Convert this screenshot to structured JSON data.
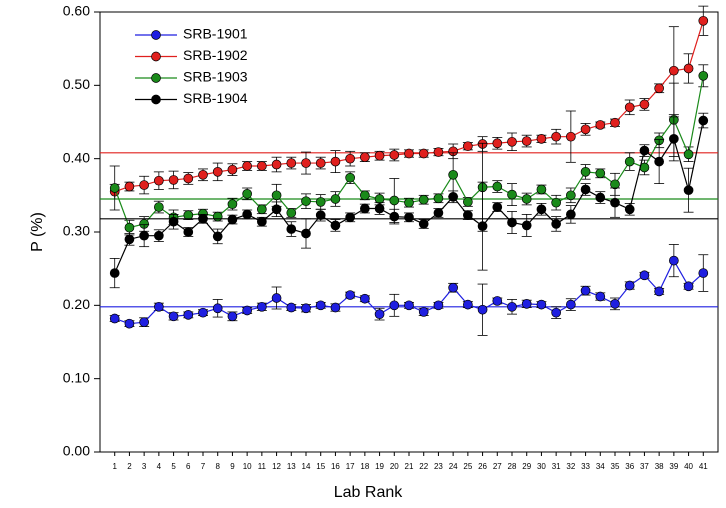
{
  "chart_data": {
    "type": "line",
    "x_label": "Lab Rank",
    "y_label": "P (%)",
    "categories": [
      "1",
      "2",
      "3",
      "4",
      "5",
      "6",
      "7",
      "8",
      "9",
      "10",
      "11",
      "12",
      "13",
      "14",
      "15",
      "16",
      "17",
      "18",
      "19",
      "20",
      "21",
      "22",
      "23",
      "24",
      "25",
      "26",
      "27",
      "28",
      "29",
      "30",
      "31",
      "32",
      "33",
      "34",
      "35",
      "36",
      "37",
      "38",
      "39",
      "40",
      "41"
    ],
    "ylim": [
      0,
      0.6
    ],
    "yticks": [
      {
        "value": 0,
        "label": "0.00"
      },
      {
        "value": 0.1,
        "label": "0.10"
      },
      {
        "value": 0.2,
        "label": "0.20"
      },
      {
        "value": 0.3,
        "label": "0.30"
      },
      {
        "value": 0.4,
        "label": "0.40"
      },
      {
        "value": 0.5,
        "label": "0.50"
      },
      {
        "value": 0.6,
        "label": "0.60"
      }
    ],
    "legend": "upper left",
    "series": [
      {
        "name": "SRB-1901",
        "color": "#1f1fe0",
        "reference": 0.198,
        "values": [
          0.182,
          0.175,
          0.177,
          0.198,
          0.185,
          0.187,
          0.19,
          0.196,
          0.185,
          0.193,
          0.198,
          0.21,
          0.197,
          0.196,
          0.2,
          0.197,
          0.214,
          0.209,
          0.188,
          0.2,
          0.2,
          0.191,
          0.2,
          0.224,
          0.201,
          0.194,
          0.206,
          0.198,
          0.202,
          0.201,
          0.19,
          0.201,
          0.22,
          0.212,
          0.202,
          0.227,
          0.241,
          0.219,
          0.261,
          0.226,
          0.244
        ],
        "errors": [
          0.004,
          0.004,
          0.006,
          0.005,
          0.005,
          0.004,
          0.004,
          0.012,
          0.006,
          0.004,
          0.005,
          0.015,
          0.004,
          0.005,
          0.004,
          0.005,
          0.004,
          0.004,
          0.008,
          0.015,
          0.004,
          0.005,
          0.004,
          0.006,
          0.004,
          0.035,
          0.004,
          0.01,
          0.005,
          0.004,
          0.008,
          0.008,
          0.006,
          0.005,
          0.008,
          0.005,
          0.004,
          0.004,
          0.022,
          0.004,
          0.025
        ]
      },
      {
        "name": "SRB-1902",
        "color": "#e0201e",
        "reference": 0.408,
        "values": [
          0.355,
          0.362,
          0.364,
          0.37,
          0.371,
          0.373,
          0.378,
          0.382,
          0.385,
          0.39,
          0.39,
          0.392,
          0.394,
          0.394,
          0.394,
          0.396,
          0.4,
          0.402,
          0.404,
          0.405,
          0.407,
          0.407,
          0.409,
          0.41,
          0.417,
          0.42,
          0.421,
          0.423,
          0.424,
          0.427,
          0.43,
          0.43,
          0.44,
          0.446,
          0.449,
          0.47,
          0.474,
          0.496,
          0.52,
          0.523,
          0.588
        ],
        "errors": [
          0.01,
          0.006,
          0.012,
          0.012,
          0.012,
          0.008,
          0.008,
          0.012,
          0.008,
          0.006,
          0.006,
          0.01,
          0.008,
          0.015,
          0.008,
          0.015,
          0.01,
          0.006,
          0.006,
          0.008,
          0.005,
          0.005,
          0.005,
          0.01,
          0.005,
          0.01,
          0.008,
          0.012,
          0.008,
          0.005,
          0.01,
          0.035,
          0.008,
          0.004,
          0.005,
          0.01,
          0.008,
          0.006,
          0.06,
          0.02,
          0.02
        ]
      },
      {
        "name": "SRB-1903",
        "color": "#1a8a1a",
        "reference": 0.345,
        "values": [
          0.36,
          0.306,
          0.311,
          0.334,
          0.32,
          0.323,
          0.325,
          0.321,
          0.338,
          0.352,
          0.331,
          0.35,
          0.326,
          0.342,
          0.341,
          0.345,
          0.374,
          0.35,
          0.345,
          0.343,
          0.34,
          0.344,
          0.346,
          0.378,
          0.341,
          0.361,
          0.362,
          0.351,
          0.345,
          0.358,
          0.34,
          0.35,
          0.382,
          0.38,
          0.365,
          0.396,
          0.388,
          0.425,
          0.453,
          0.406,
          0.513
        ],
        "errors": [
          0.03,
          0.01,
          0.01,
          0.008,
          0.01,
          0.006,
          0.006,
          0.006,
          0.008,
          0.008,
          0.006,
          0.015,
          0.006,
          0.01,
          0.01,
          0.01,
          0.008,
          0.006,
          0.008,
          0.03,
          0.006,
          0.006,
          0.006,
          0.03,
          0.006,
          0.06,
          0.008,
          0.015,
          0.008,
          0.006,
          0.01,
          0.01,
          0.01,
          0.006,
          0.015,
          0.012,
          0.01,
          0.01,
          0.05,
          0.01,
          0.015
        ]
      },
      {
        "name": "SRB-1904",
        "color": "#000000",
        "reference": 0.318,
        "values": [
          0.244,
          0.29,
          0.295,
          0.295,
          0.314,
          0.3,
          0.318,
          0.294,
          0.317,
          0.324,
          0.314,
          0.331,
          0.304,
          0.298,
          0.323,
          0.309,
          0.32,
          0.332,
          0.332,
          0.321,
          0.32,
          0.311,
          0.326,
          0.348,
          0.323,
          0.308,
          0.334,
          0.313,
          0.309,
          0.331,
          0.311,
          0.324,
          0.358,
          0.347,
          0.34,
          0.331,
          0.411,
          0.396,
          0.427,
          0.357,
          0.452
        ],
        "errors": [
          0.02,
          0.008,
          0.015,
          0.008,
          0.01,
          0.006,
          0.006,
          0.01,
          0.006,
          0.006,
          0.006,
          0.01,
          0.01,
          0.02,
          0.008,
          0.008,
          0.006,
          0.006,
          0.008,
          0.01,
          0.006,
          0.006,
          0.006,
          0.008,
          0.006,
          0.06,
          0.006,
          0.015,
          0.015,
          0.008,
          0.01,
          0.012,
          0.008,
          0.008,
          0.02,
          0.008,
          0.008,
          0.03,
          0.03,
          0.03,
          0.01
        ]
      }
    ]
  }
}
